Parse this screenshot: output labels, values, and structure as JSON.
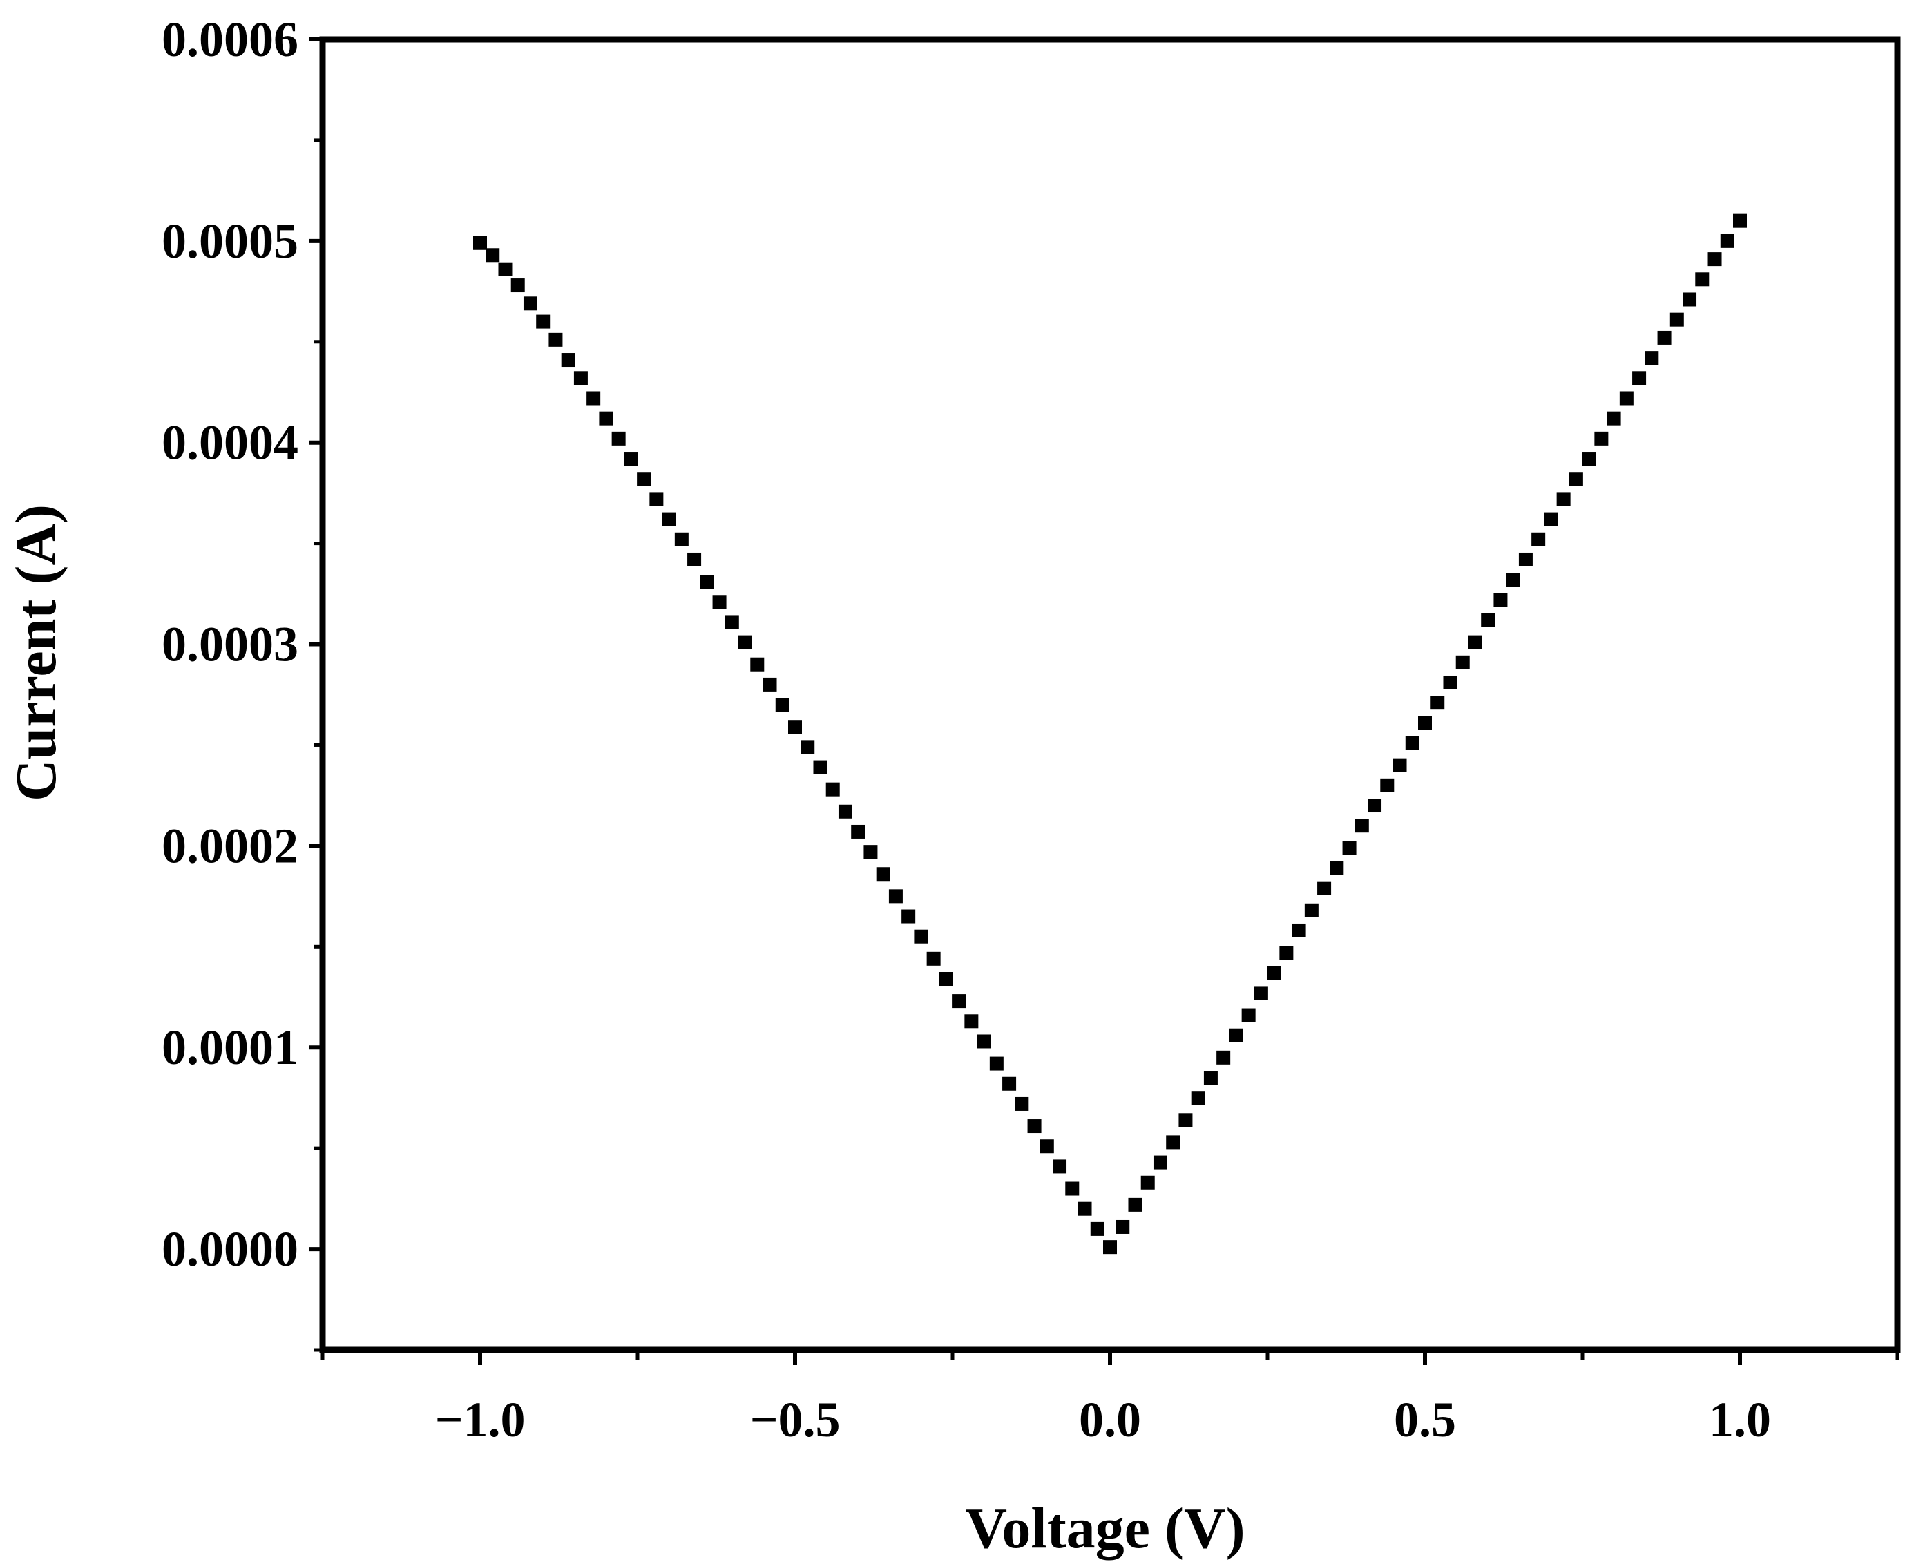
{
  "chart_data": {
    "type": "scatter",
    "title": "",
    "xlabel": "Voltage (V)",
    "ylabel": "Current (A)",
    "xlim": [
      -1.25,
      1.25
    ],
    "ylim": [
      -5e-05,
      0.0006
    ],
    "x_ticks": [
      -1.0,
      -0.5,
      0.0,
      0.5,
      1.0
    ],
    "x_tick_labels": [
      "−1.0",
      "−0.5",
      "0.0",
      "0.5",
      "1.0"
    ],
    "y_ticks": [
      0.0,
      0.0001,
      0.0002,
      0.0003,
      0.0004,
      0.0005,
      0.0006
    ],
    "y_tick_labels": [
      "0.0000",
      "0.0001",
      "0.0002",
      "0.0003",
      "0.0004",
      "0.0005",
      "0.0006"
    ],
    "grid": false,
    "legend": "none",
    "marker": "square",
    "marker_color": "#000000",
    "series": [
      {
        "points": [
          [
            -1.0,
            0.000499
          ],
          [
            -0.98,
            0.000493
          ],
          [
            -0.96,
            0.000486
          ],
          [
            -0.94,
            0.000478
          ],
          [
            -0.92,
            0.000469
          ],
          [
            -0.9,
            0.00046
          ],
          [
            -0.88,
            0.000451
          ],
          [
            -0.86,
            0.000441
          ],
          [
            -0.84,
            0.000432
          ],
          [
            -0.82,
            0.000422
          ],
          [
            -0.8,
            0.000412
          ],
          [
            -0.78,
            0.000402
          ],
          [
            -0.76,
            0.000392
          ],
          [
            -0.74,
            0.000382
          ],
          [
            -0.72,
            0.000372
          ],
          [
            -0.7,
            0.000362
          ],
          [
            -0.68,
            0.000352
          ],
          [
            -0.66,
            0.000342
          ],
          [
            -0.64,
            0.000331
          ],
          [
            -0.62,
            0.000321
          ],
          [
            -0.6,
            0.000311
          ],
          [
            -0.58,
            0.000301
          ],
          [
            -0.56,
            0.00029
          ],
          [
            -0.54,
            0.00028
          ],
          [
            -0.52,
            0.00027
          ],
          [
            -0.5,
            0.000259
          ],
          [
            -0.48,
            0.000249
          ],
          [
            -0.46,
            0.000239
          ],
          [
            -0.44,
            0.000228
          ],
          [
            -0.42,
            0.000217
          ],
          [
            -0.4,
            0.000207
          ],
          [
            -0.38,
            0.000197
          ],
          [
            -0.36,
            0.000186
          ],
          [
            -0.34,
            0.000175
          ],
          [
            -0.32,
            0.000165
          ],
          [
            -0.3,
            0.000155
          ],
          [
            -0.28,
            0.000144
          ],
          [
            -0.26,
            0.000134
          ],
          [
            -0.24,
            0.000123
          ],
          [
            -0.22,
            0.000113
          ],
          [
            -0.2,
            0.000103
          ],
          [
            -0.18,
            9.2e-05
          ],
          [
            -0.16,
            8.2e-05
          ],
          [
            -0.14,
            7.2e-05
          ],
          [
            -0.12,
            6.1e-05
          ],
          [
            -0.1,
            5.1e-05
          ],
          [
            -0.08,
            4.1e-05
          ],
          [
            -0.06,
            3e-05
          ],
          [
            -0.04,
            2e-05
          ],
          [
            -0.02,
            1e-05
          ],
          [
            0.0,
            1e-06
          ],
          [
            0.02,
            1.1e-05
          ],
          [
            0.04,
            2.2e-05
          ],
          [
            0.06,
            3.3e-05
          ],
          [
            0.08,
            4.3e-05
          ],
          [
            0.1,
            5.3e-05
          ],
          [
            0.12,
            6.4e-05
          ],
          [
            0.14,
            7.5e-05
          ],
          [
            0.16,
            8.5e-05
          ],
          [
            0.18,
            9.5e-05
          ],
          [
            0.2,
            0.000106
          ],
          [
            0.22,
            0.000116
          ],
          [
            0.24,
            0.000127
          ],
          [
            0.26,
            0.000137
          ],
          [
            0.28,
            0.000147
          ],
          [
            0.3,
            0.000158
          ],
          [
            0.32,
            0.000168
          ],
          [
            0.34,
            0.000179
          ],
          [
            0.36,
            0.000189
          ],
          [
            0.38,
            0.000199
          ],
          [
            0.4,
            0.00021
          ],
          [
            0.42,
            0.00022
          ],
          [
            0.44,
            0.00023
          ],
          [
            0.46,
            0.00024
          ],
          [
            0.48,
            0.000251
          ],
          [
            0.5,
            0.000261
          ],
          [
            0.52,
            0.000271
          ],
          [
            0.54,
            0.000281
          ],
          [
            0.56,
            0.000291
          ],
          [
            0.58,
            0.000301
          ],
          [
            0.6,
            0.000312
          ],
          [
            0.62,
            0.000322
          ],
          [
            0.64,
            0.000332
          ],
          [
            0.66,
            0.000342
          ],
          [
            0.68,
            0.000352
          ],
          [
            0.7,
            0.000362
          ],
          [
            0.72,
            0.000372
          ],
          [
            0.74,
            0.000382
          ],
          [
            0.76,
            0.000392
          ],
          [
            0.78,
            0.000402
          ],
          [
            0.8,
            0.000412
          ],
          [
            0.82,
            0.000422
          ],
          [
            0.84,
            0.000432
          ],
          [
            0.86,
            0.000442
          ],
          [
            0.88,
            0.000452
          ],
          [
            0.9,
            0.000461
          ],
          [
            0.92,
            0.000471
          ],
          [
            0.94,
            0.000481
          ],
          [
            0.96,
            0.000491
          ],
          [
            0.98,
            0.0005
          ],
          [
            1.0,
            0.00051
          ]
        ]
      }
    ]
  }
}
